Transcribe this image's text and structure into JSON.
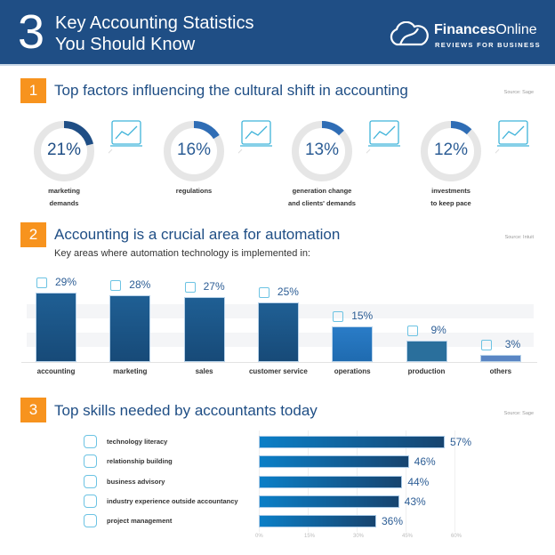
{
  "header": {
    "number": "3",
    "title_line1": "Key Accounting Statistics",
    "title_line2": "You Should Know",
    "logo_bold": "Finances",
    "logo_light": "Online",
    "logo_sub": "REVIEWS FOR BUSINESS"
  },
  "sections": [
    {
      "number": "1",
      "title": "Top factors influencing the cultural shift in accounting",
      "source": "Source: Sage"
    },
    {
      "number": "2",
      "title": "Accounting is a crucial area for automation",
      "subtitle": "Key areas where automation technology is implemented in:",
      "source": "Source: Intuit"
    },
    {
      "number": "3",
      "title": "Top skills needed by accountants today",
      "source": "Source: Sage"
    }
  ],
  "colors": {
    "header": "#1f4e85",
    "accent": "#f7931e",
    "ring": "#e6e6e6",
    "ring_fill": "#2f6db5"
  },
  "chart_data": [
    {
      "type": "pie",
      "title": "Top factors influencing the cultural shift in accounting",
      "items": [
        {
          "label_line1": "marketing",
          "label_line2": "demands",
          "value": 21,
          "display": "21%",
          "icon": "laptop-chart-icon"
        },
        {
          "label_line1": "regulations",
          "label_line2": "",
          "value": 16,
          "display": "16%",
          "icon": "document-pen-icon"
        },
        {
          "label_line1": "generation change",
          "label_line2": "and clients' demands",
          "value": 13,
          "display": "13%",
          "icon": "people-hand-icon"
        },
        {
          "label_line1": "investments",
          "label_line2": "to keep pace",
          "value": 12,
          "display": "12%",
          "icon": "coin-stacks-icon"
        }
      ]
    },
    {
      "type": "bar",
      "title": "Key areas where automation technology is implemented in:",
      "ylim": [
        0,
        30
      ],
      "categories": [
        "accounting",
        "marketing",
        "sales",
        "customer service",
        "operations",
        "production",
        "others"
      ],
      "values": [
        29,
        28,
        27,
        25,
        15,
        9,
        3
      ],
      "labels": [
        "29%",
        "28%",
        "27%",
        "25%",
        "15%",
        "9%",
        "3%"
      ],
      "icons": [
        "calculator-icon",
        "megaphone-icon",
        "shopping-bag-icon",
        "headset-icon",
        "network-icon",
        "robot-arm-icon",
        "grid-icon"
      ]
    },
    {
      "type": "bar",
      "orientation": "horizontal",
      "title": "Top skills needed by accountants today",
      "xlim": [
        0,
        60
      ],
      "categories": [
        "technology literacy",
        "relationship building",
        "business advisory",
        "industry experience outside accountancy",
        "project management"
      ],
      "values": [
        57,
        46,
        44,
        43,
        36
      ],
      "labels": [
        "57%",
        "46%",
        "44%",
        "43%",
        "36%"
      ],
      "icons": [
        "circuit-icon",
        "handshake-icon",
        "advisory-icon",
        "experience-icon",
        "project-icon"
      ],
      "ticks": [
        "0%",
        "15%",
        "30%",
        "45%",
        "60%"
      ]
    }
  ]
}
